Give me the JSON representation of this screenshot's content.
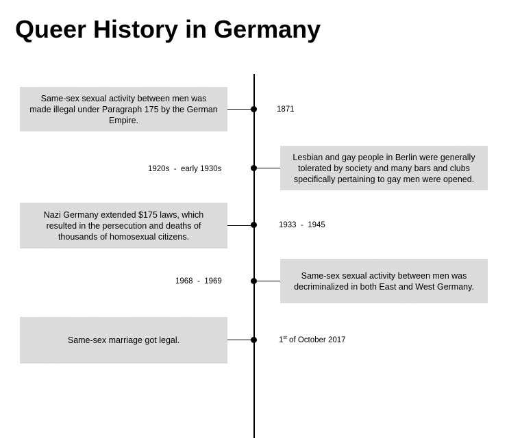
{
  "title": "Queer History in Germany",
  "events": [
    {
      "date": "1871",
      "text": "Same-sex sexual activity between men was made illegal under Paragraph 175 by the German Empire."
    },
    {
      "date": "1920s  -  early 1930s",
      "text": "Lesbian and gay people in Berlin were generally tolerated by society and many bars and clubs specifically pertaining to gay men were opened."
    },
    {
      "date": "1933  -  1945",
      "text": "Nazi Germany extended $175 laws, which resulted in the persecution and deaths of thousands of homosexual citizens."
    },
    {
      "date": "1968  -  1969",
      "text": "Same-sex sexual activity between men was decriminalized in both East and West Germany."
    },
    {
      "date_ordinal_number": "1",
      "date_ordinal_suffix": "st",
      "date_rest": " of October 2017",
      "text": "Same-sex marriage got legal."
    }
  ]
}
